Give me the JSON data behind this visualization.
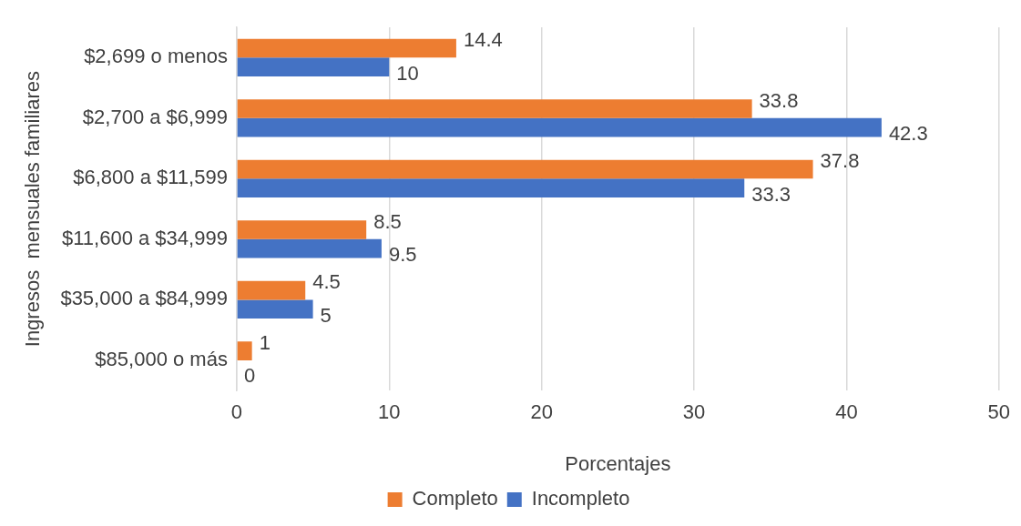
{
  "chart_data": {
    "type": "bar",
    "orientation": "horizontal",
    "xlabel": "Porcentajes",
    "ylabel": "Ingresos  mensuales familiares",
    "categories": [
      "$2,699 o menos",
      "$2,700 a $6,999",
      "$6,800 a $11,599",
      "$11,600 a $34,999",
      "$35,000 a $84,999",
      "$85,000 o más"
    ],
    "series": [
      {
        "name": "Completo",
        "color": "#ed7d31",
        "values": [
          14.4,
          33.8,
          37.8,
          8.5,
          4.5,
          1
        ]
      },
      {
        "name": "Incompleto",
        "color": "#4472c4",
        "values": [
          10,
          42.3,
          33.3,
          9.5,
          5,
          0
        ]
      }
    ],
    "xlim": [
      0,
      50
    ],
    "xticks": [
      0,
      10,
      20,
      30,
      40,
      50
    ],
    "grid": "x",
    "legend": "bottom",
    "data_labels": true
  }
}
